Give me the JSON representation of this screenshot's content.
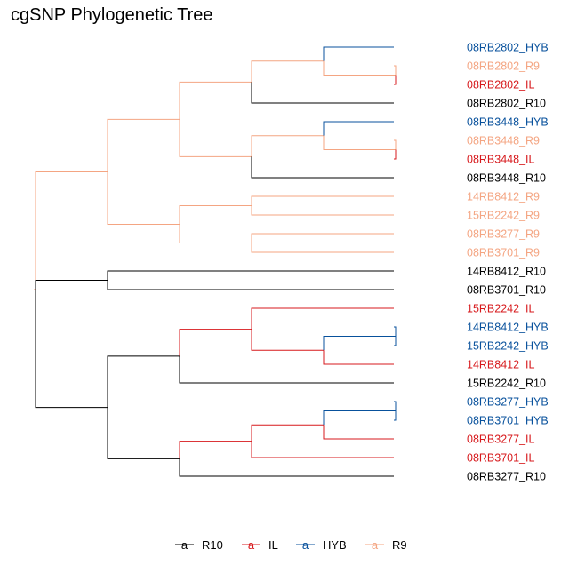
{
  "title": "cgSNP Phylogenetic Tree",
  "colors": {
    "R10": "#000000",
    "IL": "#d7191c",
    "HYB": "#08519c",
    "R9": "#f4a582"
  },
  "legend": {
    "key_glyph": "a",
    "items": [
      {
        "group": "R10",
        "label": "R10"
      },
      {
        "group": "IL",
        "label": "IL"
      },
      {
        "group": "HYB",
        "label": "HYB"
      },
      {
        "group": "R9",
        "label": "R9"
      }
    ]
  },
  "tree": {
    "group": "R9",
    "children": [
      {
        "group": "R9",
        "children": [
          {
            "group": "R9",
            "children": [
              {
                "group": "R9",
                "children": [
                  {
                    "group": "R9",
                    "children": [
                      {
                        "label": "08RB2802_HYB",
                        "group": "HYB"
                      },
                      {
                        "group": "R9",
                        "children": [
                          {
                            "label": "08RB2802_R9",
                            "group": "R9"
                          },
                          {
                            "label": "08RB2802_IL",
                            "group": "IL"
                          }
                        ]
                      }
                    ]
                  },
                  {
                    "label": "08RB2802_R10",
                    "group": "R10"
                  }
                ]
              },
              {
                "group": "R9",
                "children": [
                  {
                    "group": "R9",
                    "children": [
                      {
                        "label": "08RB3448_HYB",
                        "group": "HYB"
                      },
                      {
                        "group": "R9",
                        "children": [
                          {
                            "label": "08RB3448_R9",
                            "group": "R9"
                          },
                          {
                            "label": "08RB3448_IL",
                            "group": "IL"
                          }
                        ]
                      }
                    ]
                  },
                  {
                    "label": "08RB3448_R10",
                    "group": "R10"
                  }
                ]
              }
            ]
          },
          {
            "group": "R9",
            "children": [
              {
                "group": "R9",
                "children": [
                  {
                    "label": "14RB8412_R9",
                    "group": "R9"
                  },
                  {
                    "label": "15RB2242_R9",
                    "group": "R9"
                  }
                ]
              },
              {
                "group": "R9",
                "children": [
                  {
                    "label": "08RB3277_R9",
                    "group": "R9"
                  },
                  {
                    "label": "08RB3701_R9",
                    "group": "R9"
                  }
                ]
              }
            ]
          }
        ]
      },
      {
        "group": "R10",
        "children": [
          {
            "label": "14RB8412_R10",
            "group": "R10"
          },
          {
            "label": "08RB3701_R10",
            "group": "R10"
          }
        ]
      },
      {
        "group": "R10",
        "children": [
          {
            "group": "R10",
            "children": [
              {
                "group": "IL",
                "children": [
                  {
                    "label": "15RB2242_IL",
                    "group": "IL"
                  },
                  {
                    "group": "IL",
                    "children": [
                      {
                        "group": "HYB",
                        "children": [
                          {
                            "label": "14RB8412_HYB",
                            "group": "HYB"
                          },
                          {
                            "label": "15RB2242_HYB",
                            "group": "HYB"
                          }
                        ]
                      },
                      {
                        "label": "14RB8412_IL",
                        "group": "IL"
                      }
                    ]
                  }
                ]
              },
              {
                "label": "15RB2242_R10",
                "group": "R10"
              }
            ]
          },
          {
            "group": "R10",
            "children": [
              {
                "group": "IL",
                "children": [
                  {
                    "group": "IL",
                    "children": [
                      {
                        "group": "HYB",
                        "children": [
                          {
                            "label": "08RB3277_HYB",
                            "group": "HYB"
                          },
                          {
                            "label": "08RB3701_HYB",
                            "group": "HYB"
                          }
                        ]
                      },
                      {
                        "label": "08RB3277_IL",
                        "group": "IL"
                      }
                    ]
                  },
                  {
                    "label": "08RB3701_IL",
                    "group": "IL"
                  }
                ]
              },
              {
                "label": "08RB3277_R10",
                "group": "R10"
              }
            ]
          }
        ]
      }
    ]
  }
}
